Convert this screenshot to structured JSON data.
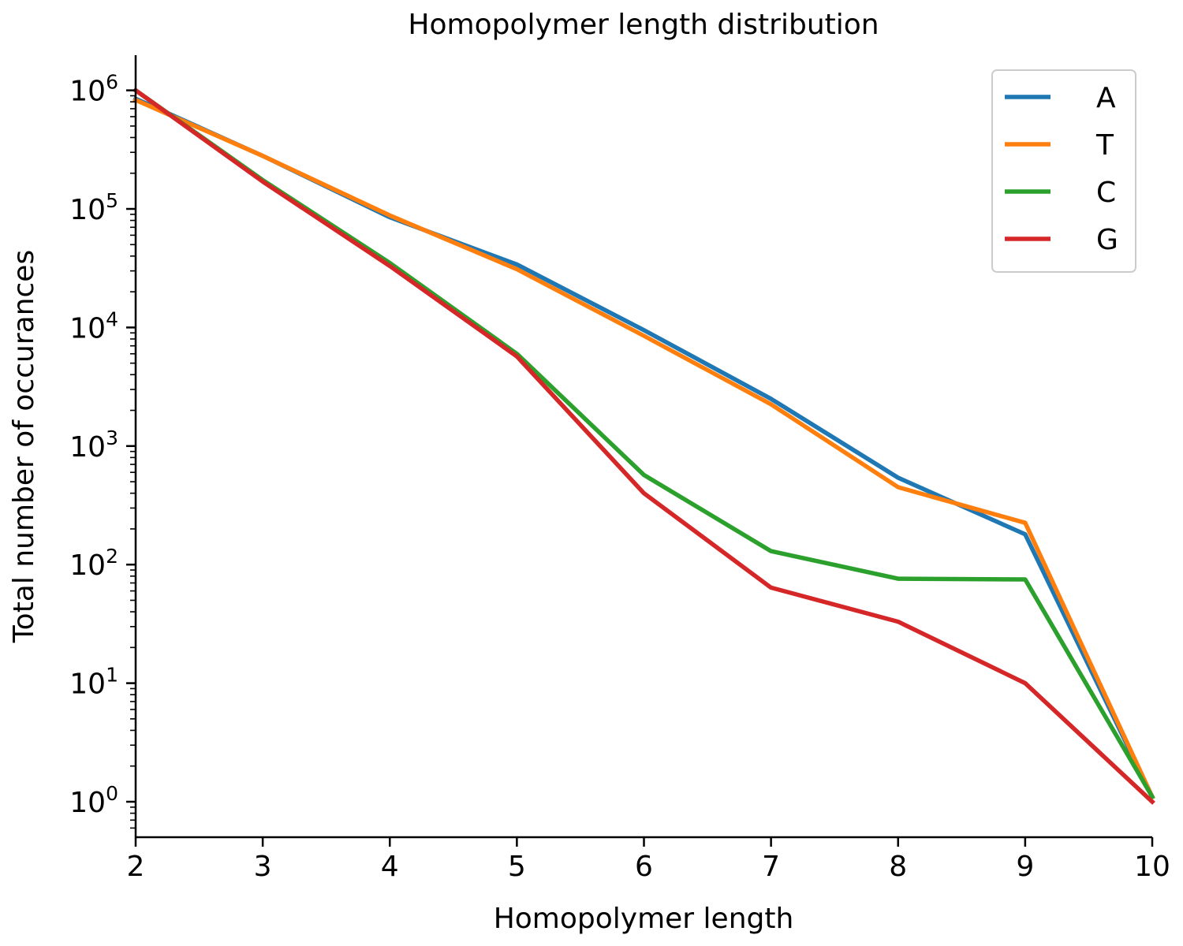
{
  "chart_data": {
    "type": "line",
    "title": "Homopolymer length distribution",
    "xlabel": "Homopolymer length",
    "ylabel": "Total number of occurances",
    "x": [
      2,
      3,
      4,
      5,
      6,
      7,
      8,
      9,
      10
    ],
    "xlim": [
      2,
      10
    ],
    "ylim": [
      0.5,
      2000000
    ],
    "yscale": "log",
    "x_ticks": [
      "2",
      "3",
      "4",
      "5",
      "6",
      "7",
      "8",
      "9",
      "10"
    ],
    "y_tick_values": [
      1,
      10,
      100,
      1000,
      10000,
      100000,
      1000000
    ],
    "y_ticks": [
      {
        "base": "10",
        "exp": "0"
      },
      {
        "base": "10",
        "exp": "1"
      },
      {
        "base": "10",
        "exp": "2"
      },
      {
        "base": "10",
        "exp": "3"
      },
      {
        "base": "10",
        "exp": "4"
      },
      {
        "base": "10",
        "exp": "5"
      },
      {
        "base": "10",
        "exp": "6"
      }
    ],
    "grid": false,
    "legend_position": "top-right",
    "series": [
      {
        "name": "A",
        "color": "#1f77b4",
        "values": [
          850000,
          280000,
          85000,
          34000,
          9500,
          2500,
          540,
          180,
          1.1
        ]
      },
      {
        "name": "T",
        "color": "#ff7f0e",
        "values": [
          830000,
          280000,
          88000,
          31000,
          8500,
          2250,
          450,
          225,
          1.1
        ]
      },
      {
        "name": "C",
        "color": "#2ca02c",
        "values": [
          1000000,
          175000,
          35000,
          6000,
          570,
          130,
          76,
          75,
          1.1
        ]
      },
      {
        "name": "G",
        "color": "#d62728",
        "values": [
          1000000,
          170000,
          33000,
          5700,
          400,
          64,
          33,
          10,
          1.0
        ]
      }
    ]
  }
}
